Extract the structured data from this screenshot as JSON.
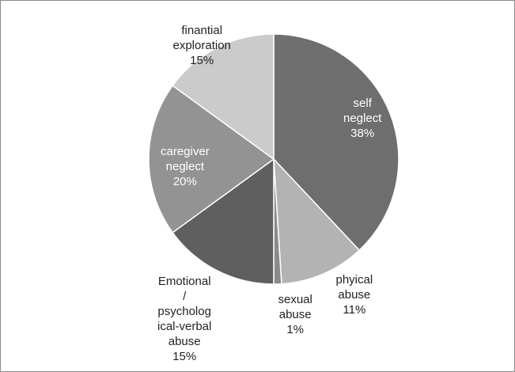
{
  "chart_data": {
    "type": "pie",
    "title": "",
    "slices": [
      {
        "label_lines": [
          "self",
          "neglect",
          "38%"
        ],
        "value": 38,
        "color": "#6e6e6e",
        "text_color": "#ffffff"
      },
      {
        "label_lines": [
          "phyical",
          "abuse",
          "11%"
        ],
        "value": 11,
        "color": "#b3b3b3",
        "text_color": "#222222"
      },
      {
        "label_lines": [
          "sexual",
          "abuse",
          "1%"
        ],
        "value": 1,
        "color": "#8a8a8a",
        "text_color": "#222222"
      },
      {
        "label_lines": [
          "Emotional",
          "/",
          "psycholog",
          "ical-verbal",
          "abuse",
          "15%"
        ],
        "value": 15,
        "color": "#5f5f5f",
        "text_color": "#222222"
      },
      {
        "label_lines": [
          "caregiver",
          "neglect",
          "20%"
        ],
        "value": 20,
        "color": "#939393",
        "text_color": "#ffffff"
      },
      {
        "label_lines": [
          "finantial",
          "exploration",
          "15%"
        ],
        "value": 15,
        "color": "#cbcbcb",
        "text_color": "#222222"
      }
    ],
    "start_angle_deg": 0,
    "direction": "clockwise",
    "slice_border_color": "#ffffff",
    "legend": "none"
  }
}
